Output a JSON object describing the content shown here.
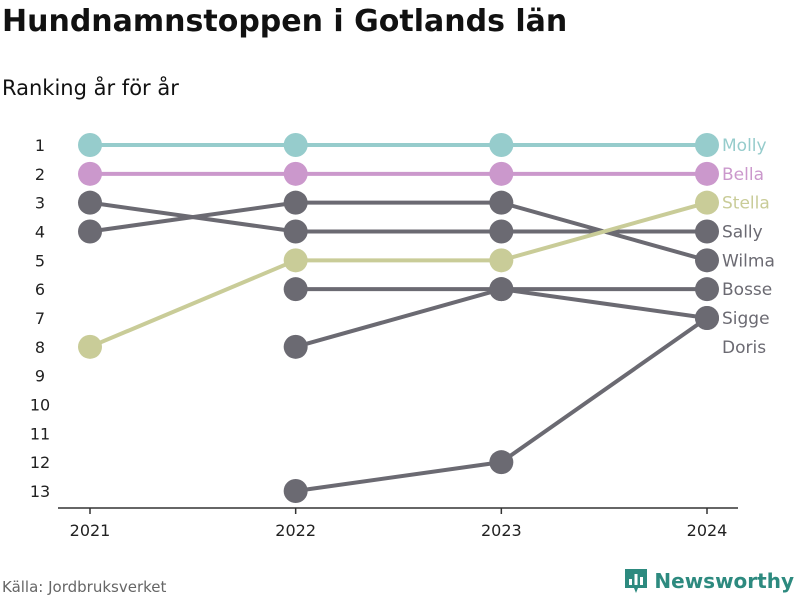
{
  "title": "Hundnamnstoppen i Gotlands län",
  "subtitle": "Ranking år för år",
  "source": "Källa: Jordbruksverket",
  "brand": {
    "name": "Newsworthy",
    "icon": "bar-chart-logo-icon",
    "color": "#2d8a7f"
  },
  "chart_data": {
    "type": "line",
    "x": [
      "2021",
      "2022",
      "2023",
      "2024"
    ],
    "y_ticks": [
      1,
      2,
      3,
      4,
      5,
      6,
      7,
      8,
      9,
      10,
      11,
      12,
      13
    ],
    "ylim": [
      1,
      13
    ],
    "y_reversed": true,
    "grid": false,
    "series": [
      {
        "name": "Molly",
        "color": "#96cccc",
        "values": [
          1,
          1,
          1,
          1
        ]
      },
      {
        "name": "Bella",
        "color": "#cb98cc",
        "values": [
          2,
          2,
          2,
          2
        ]
      },
      {
        "name": "Stella",
        "color": "#c9cc98",
        "values": [
          8,
          5,
          5,
          3
        ]
      },
      {
        "name": "Sally",
        "color": "#6b6a72",
        "values": [
          3,
          4,
          4,
          4
        ]
      },
      {
        "name": "Wilma",
        "color": "#6b6a72",
        "values": [
          4,
          3,
          3,
          5
        ]
      },
      {
        "name": "Bosse",
        "color": "#6b6a72",
        "values": [
          null,
          6,
          6,
          6
        ]
      },
      {
        "name": "Sigge",
        "color": "#6b6a72",
        "values": [
          null,
          8,
          6,
          7
        ]
      },
      {
        "name": "Doris",
        "color": "#6b6a72",
        "values": [
          null,
          13,
          12,
          7
        ]
      }
    ]
  }
}
